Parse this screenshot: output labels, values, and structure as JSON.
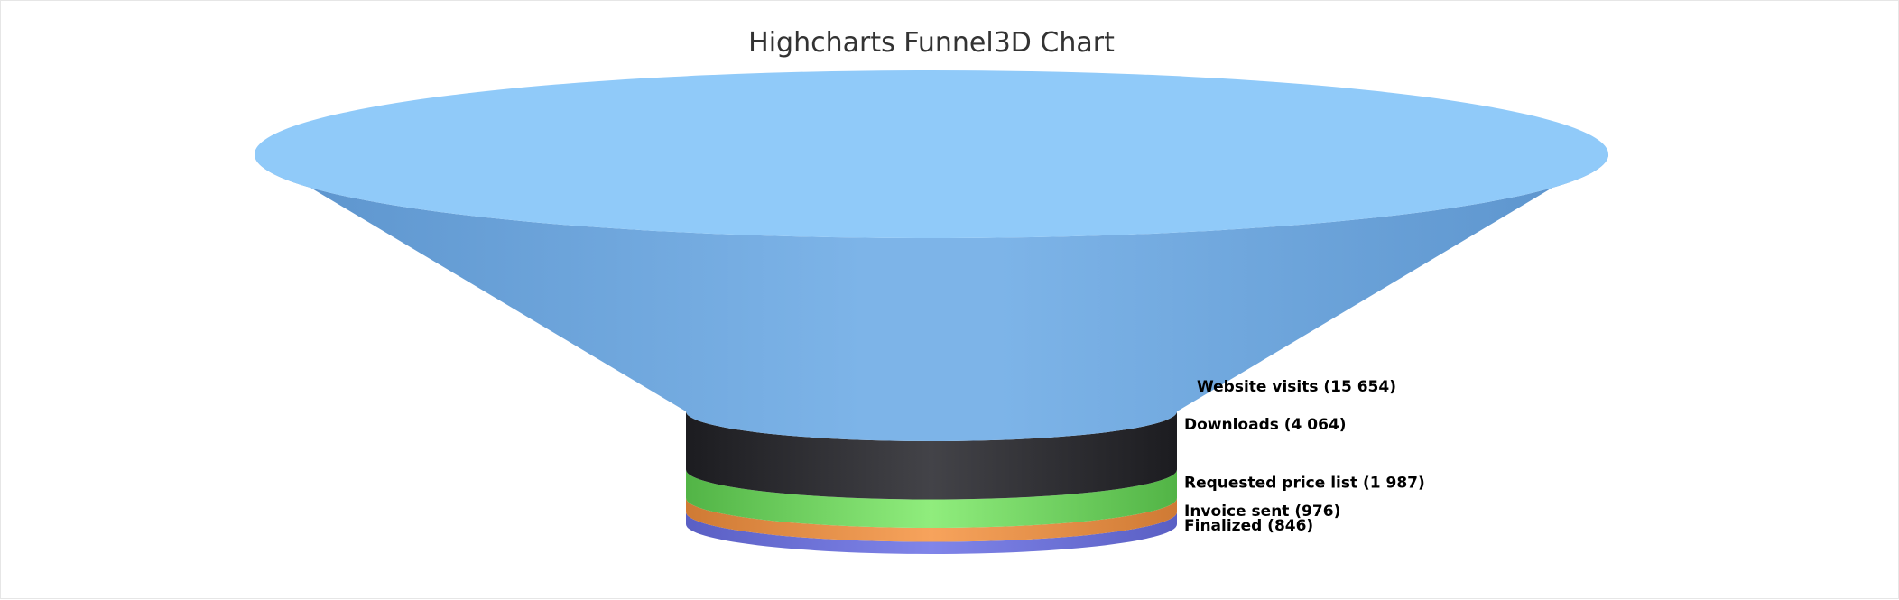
{
  "chart_data": {
    "type": "funnel3d",
    "title": "Highcharts Funnel3D Chart",
    "series": [
      {
        "points": [
          {
            "name": "Website visits",
            "value": 15654,
            "label": "Website visits (15 654)",
            "color": "#90CAF9",
            "side_color": "#5B93CC"
          },
          {
            "name": "Downloads",
            "value": 4064,
            "label": "Downloads (4 064)",
            "color": "#434348",
            "side_color": "#1c1c20"
          },
          {
            "name": "Requested price list",
            "value": 1987,
            "label": "Requested price list (1 987)",
            "color": "#90ED7D",
            "side_color": "#52b446"
          },
          {
            "name": "Invoice sent",
            "value": 976,
            "label": "Invoice sent (976)",
            "color": "#F7A35C",
            "side_color": "#cf7a34"
          },
          {
            "name": "Finalized",
            "value": 846,
            "label": "Finalized (846)",
            "color": "#8085E9",
            "side_color": "#5a5fc4"
          }
        ]
      }
    ],
    "legend": false,
    "grid": false
  }
}
